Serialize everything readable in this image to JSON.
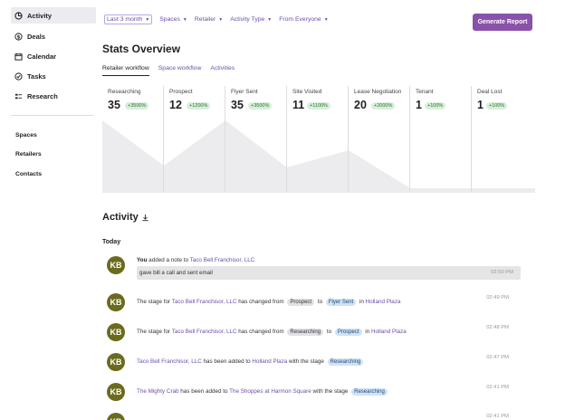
{
  "sidebar": {
    "items": [
      {
        "label": "Activity",
        "icon": "pie-chart-icon"
      },
      {
        "label": "Deals",
        "icon": "dollar-icon"
      },
      {
        "label": "Calendar",
        "icon": "calendar-icon"
      },
      {
        "label": "Tasks",
        "icon": "check-circle-icon"
      },
      {
        "label": "Research",
        "icon": "research-icon"
      }
    ],
    "secondary": [
      "Spaces",
      "Retailers",
      "Contacts"
    ]
  },
  "filters": [
    "Last 3 month",
    "Spaces",
    "Retailer",
    "Activity Type",
    "From Everyone"
  ],
  "generate_label": "Generate Report",
  "stats_title": "Stats Overview",
  "tabs": [
    "Retailer workflow",
    "Space workflow",
    "Activities"
  ],
  "stages": [
    {
      "name": "Researching",
      "count": "35",
      "change": "+3500%"
    },
    {
      "name": "Prospect",
      "count": "12",
      "change": "+1200%"
    },
    {
      "name": "Flyer Sent",
      "count": "35",
      "change": "+3500%"
    },
    {
      "name": "Site Visited",
      "count": "11",
      "change": "+1100%"
    },
    {
      "name": "Lease Negotiation",
      "count": "20",
      "change": "+2000%"
    },
    {
      "name": "Tenant",
      "count": "1",
      "change": "+100%"
    },
    {
      "name": "Deal Lost",
      "count": "1",
      "change": "+100%"
    }
  ],
  "activity_title": "Activity",
  "today_label": "Today",
  "note": {
    "avatar": "KB",
    "actor": "You",
    "action": " added a note to ",
    "target": "Taco Bell Franchisor, LLC",
    "text": "gave bill a call and sent email",
    "time": "02:50 PM"
  },
  "entries": [
    {
      "avatar": "KB",
      "p1": "The stage for ",
      "l1": "Taco Bell Franchisor, LLC",
      "p2": " has changed from ",
      "pill1": "Prospect",
      "p3": " to ",
      "pill2": "Flyer Sent",
      "p4": " in ",
      "l2": "Holland Plaza",
      "time": "02:49 PM"
    },
    {
      "avatar": "KB",
      "p1": "The stage for ",
      "l1": "Taco Bell Franchisor, LLC",
      "p2": " has changed from ",
      "pill1": "Researching",
      "p3": " to ",
      "pill2": "Prospect",
      "p4": " in ",
      "l2": "Holland Plaza",
      "time": "02:48 PM"
    },
    {
      "avatar": "KB",
      "l1": "Taco Bell Franchisor, LLC",
      "p2": " has been added to ",
      "l2": "Holland Plaza",
      "p3": " with the stage ",
      "pill1": "Researching",
      "time": "02:47 PM"
    },
    {
      "avatar": "KB",
      "l1": "The Mighty Crab",
      "p2": " has been added to ",
      "l2": "The Shoppes at Harmon Square",
      "p3": " with the stage ",
      "pill1": "Researching",
      "time": "02:41 PM"
    },
    {
      "avatar": "KB",
      "time": "02:41 PM"
    }
  ],
  "colors": {
    "accent": "#8a52a8",
    "link": "#6b4ea8",
    "avatar": "#6b6b1e",
    "badge": "#d8efd9"
  }
}
